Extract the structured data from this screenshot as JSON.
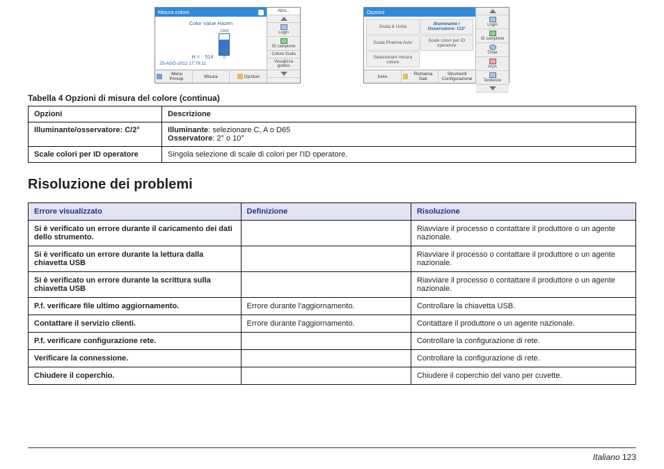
{
  "screenshots": {
    "left": {
      "header": "Misura colore",
      "chartTitle": "Color Value Hazen",
      "hLabel": "H =",
      "hValue": "514",
      "scaleTop": "1000",
      "scaleBot": "0",
      "timestamp": "25-AGO-2012  17:79:11",
      "footer": [
        "Menu Princip.",
        "Misura",
        "Opzioni"
      ]
    },
    "right": {
      "header": "Opzioni",
      "grid": [
        "Scala & Unità",
        "Illuminante / Osservatore: C/2°",
        "Scala Pharma Auto",
        "Scale colori per ID operatore",
        "Selezionare misura colore",
        ""
      ],
      "footer": [
        "Invio",
        "Richiama Dati",
        "Strumenti Configurazione"
      ]
    },
    "side": {
      "altro": "Altro...",
      "login": "Login",
      "idCampione": "ID campione",
      "timer": "Timer",
      "aqa": "AQA",
      "tendenze": "Tendenze",
      "coloreScala": "Colore Scala",
      "visualizzaGrafico": "Visualizza grafico"
    }
  },
  "table4": {
    "caption": "Tabella 4  Opzioni di misura del colore (continua)",
    "h1": "Opzioni",
    "h2": "Descrizione",
    "rows": [
      {
        "opt": "Illuminante/osservatore: C/2°",
        "desc_l1a": "Illuminante",
        "desc_l1b": ": selezionare C, A o D65",
        "desc_l2a": "Osservatore",
        "desc_l2b": ": 2° o 10°"
      },
      {
        "opt": "Scale colori per ID operatore",
        "desc": "Singola selezione di scale di colori per l'ID operatore."
      }
    ]
  },
  "section2": "Risoluzione dei problemi",
  "ts": {
    "h1": "Errore visualizzato",
    "h2": "Definizione",
    "h3": "Risoluzione",
    "rows": [
      {
        "c1": "Si è verificato un errore durante il caricamento dei dati dello strumento.",
        "c2": "",
        "c3": "Riavviare il processo o contattare il produttore o un agente nazionale."
      },
      {
        "c1": "Si è verificato un errore durante la lettura dalla chiavetta USB",
        "c2": "",
        "c3": "Riavviare il processo o contattare il produttore o un agente nazionale."
      },
      {
        "c1": "Si è verificato un errore durante la scrittura sulla chiavetta USB",
        "c2": "",
        "c3": "Riavviare il processo o contattare il produttore o un agente nazionale."
      },
      {
        "c1": "P.f. verificare file ultimo aggiornamento.",
        "c2": "Errore durante l'aggiornamento.",
        "c3": "Controllare la chiavetta USB."
      },
      {
        "c1": "Contattare il servizio clienti.",
        "c2": "Errore durante l'aggiornamento.",
        "c3": "Contattare il produttore o un agente nazionale."
      },
      {
        "c1": "P.f. verificare configurazione rete.",
        "c2": "",
        "c3": "Controllare la configurazione di rete."
      },
      {
        "c1": "Verificare la connessione.",
        "c2": "",
        "c3": "Controllare la configurazione di rete."
      },
      {
        "c1": "Chiudere il coperchio.",
        "c2": "",
        "c3": "Chiudere il coperchio del vano per cuvette."
      }
    ]
  },
  "footer": {
    "lang": "Italiano",
    "page": "123"
  }
}
